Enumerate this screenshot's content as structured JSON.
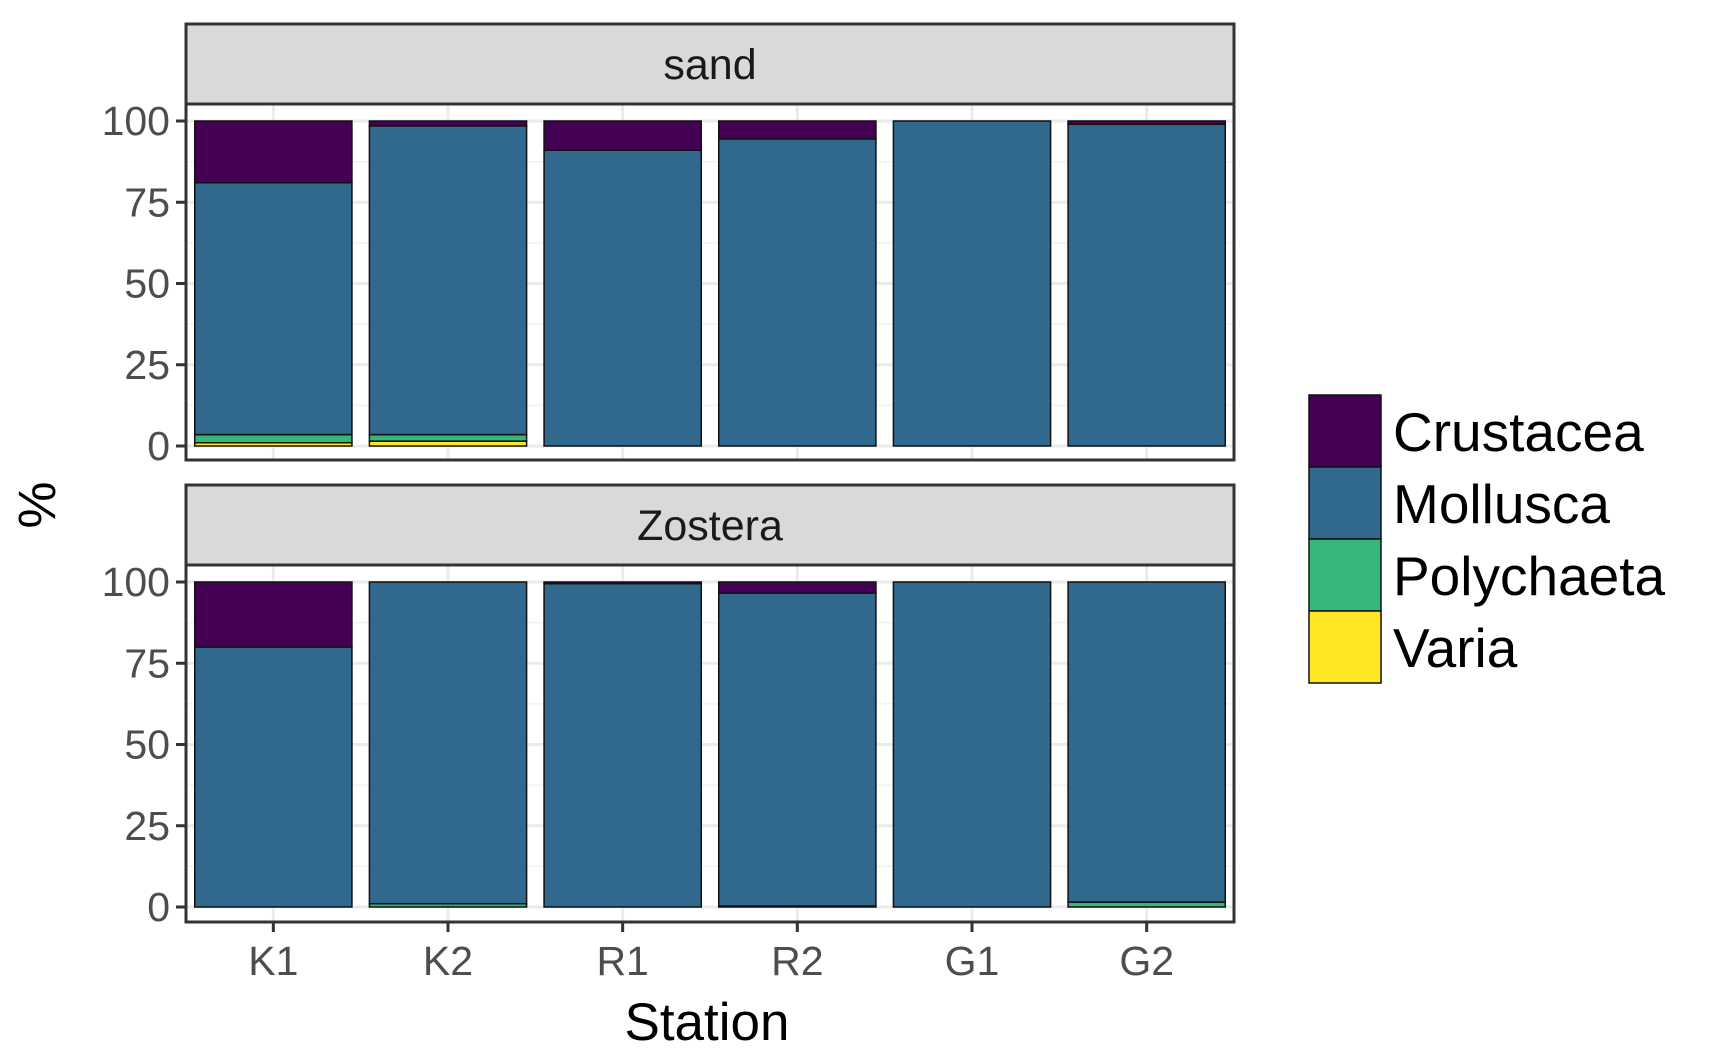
{
  "chart_data": {
    "type": "bar",
    "stacked": true,
    "xlabel": "Station",
    "ylabel": "%",
    "ylim": [
      0,
      100
    ],
    "yticks": [
      "0",
      "25",
      "50",
      "75",
      "100"
    ],
    "categories": [
      "K1",
      "K2",
      "R1",
      "R2",
      "G1",
      "G2"
    ],
    "legend": {
      "position": "right",
      "entries": [
        "Crustacea",
        "Mollusca",
        "Polychaeta",
        "Varia"
      ]
    },
    "colors": {
      "Crustacea": "#440154",
      "Mollusca": "#31688e",
      "Polychaeta": "#35b779",
      "Varia": "#fde725"
    },
    "stack_order_bottom_to_top": [
      "Varia",
      "Polychaeta",
      "Mollusca",
      "Crustacea"
    ],
    "panels": [
      {
        "label": "sand",
        "series": [
          {
            "name": "Varia",
            "values": [
              1.0,
              1.5,
              0,
              0,
              0,
              0
            ]
          },
          {
            "name": "Polychaeta",
            "values": [
              2.5,
              2.0,
              0,
              0,
              0,
              0
            ]
          },
          {
            "name": "Mollusca",
            "values": [
              77.5,
              95.0,
              91.0,
              94.5,
              100.0,
              99.0
            ]
          },
          {
            "name": "Crustacea",
            "values": [
              19.0,
              1.5,
              9.0,
              5.5,
              0,
              1.0
            ]
          }
        ]
      },
      {
        "label": "Zostera",
        "series": [
          {
            "name": "Varia",
            "values": [
              0,
              0,
              0,
              0,
              0,
              0
            ]
          },
          {
            "name": "Polychaeta",
            "values": [
              0,
              1.0,
              0,
              0.3,
              0,
              1.5
            ]
          },
          {
            "name": "Mollusca",
            "values": [
              80.0,
              99.0,
              99.5,
              96.3,
              100.0,
              98.5
            ]
          },
          {
            "name": "Crustacea",
            "values": [
              20.0,
              0,
              0.5,
              3.4,
              0,
              0
            ]
          }
        ]
      }
    ]
  }
}
